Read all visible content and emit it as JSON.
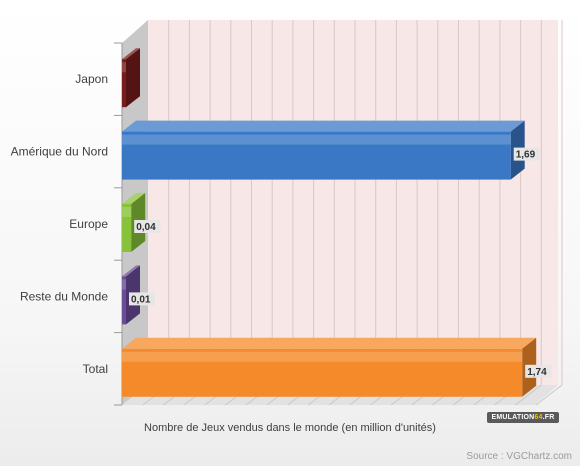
{
  "chart_data": {
    "type": "bar",
    "orientation": "horizontal",
    "three_d": true,
    "categories": [
      "Japon",
      "Amérique du Nord",
      "Europe",
      "Reste du Monde",
      "Total"
    ],
    "values": [
      0.0,
      1.69,
      0.04,
      0.01,
      1.74
    ],
    "data_labels": [
      "",
      "1,69",
      "0,04",
      "0,01",
      "1,74"
    ],
    "colors": [
      "#7a1c1c",
      "#3a78c6",
      "#88c23a",
      "#6a4d9a",
      "#f58a2a"
    ],
    "xlabel": "Nombre de Jeux vendus dans le monde (en million d'unités)",
    "xlim": [
      0,
      1.8
    ],
    "grid": true,
    "legend": "none"
  },
  "source": "Source : VGChartz.com",
  "logo": {
    "part1": "EMULATION",
    "part2": "64",
    "part3": ".FR"
  }
}
